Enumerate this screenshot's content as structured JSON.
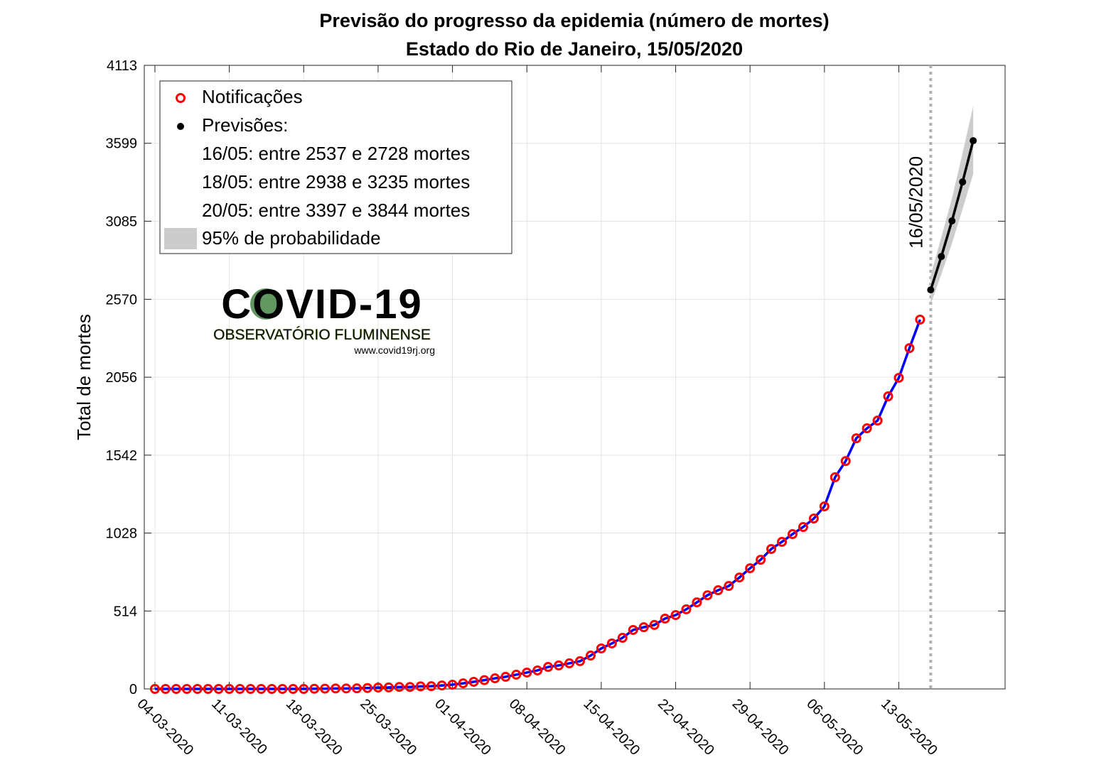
{
  "chart_data": {
    "type": "line",
    "title": "Previsão do progresso da epidemia (número de mortes)",
    "subtitle": "Estado do Rio de Janeiro, 15/05/2020",
    "y_label": "Total de mortes",
    "xlim": [
      "2020-03-03",
      "2020-05-23"
    ],
    "xticks": [
      {
        "value": "2020-03-04",
        "label": "04-03-2020"
      },
      {
        "value": "2020-03-11",
        "label": "11-03-2020"
      },
      {
        "value": "2020-03-18",
        "label": "18-03-2020"
      },
      {
        "value": "2020-03-25",
        "label": "25-03-2020"
      },
      {
        "value": "2020-04-01",
        "label": "01-04-2020"
      },
      {
        "value": "2020-04-08",
        "label": "08-04-2020"
      },
      {
        "value": "2020-04-15",
        "label": "15-04-2020"
      },
      {
        "value": "2020-04-22",
        "label": "22-04-2020"
      },
      {
        "value": "2020-04-29",
        "label": "29-04-2020"
      },
      {
        "value": "2020-05-06",
        "label": "06-05-2020"
      },
      {
        "value": "2020-05-13",
        "label": "13-05-2020"
      }
    ],
    "ylim": [
      0,
      4113
    ],
    "yticks": [
      0,
      514,
      1028,
      1542,
      2056,
      2570,
      3085,
      3599,
      4113
    ],
    "grid": true,
    "legend_position": "top-left",
    "series": [
      {
        "name": "Notificações",
        "color": "#ff0000",
        "line_color": "#0000ff",
        "x": [
          "2020-03-04",
          "2020-03-05",
          "2020-03-06",
          "2020-03-07",
          "2020-03-08",
          "2020-03-09",
          "2020-03-10",
          "2020-03-11",
          "2020-03-12",
          "2020-03-13",
          "2020-03-14",
          "2020-03-15",
          "2020-03-16",
          "2020-03-17",
          "2020-03-18",
          "2020-03-19",
          "2020-03-20",
          "2020-03-21",
          "2020-03-22",
          "2020-03-23",
          "2020-03-24",
          "2020-03-25",
          "2020-03-26",
          "2020-03-27",
          "2020-03-28",
          "2020-03-29",
          "2020-03-30",
          "2020-03-31",
          "2020-04-01",
          "2020-04-02",
          "2020-04-03",
          "2020-04-04",
          "2020-04-05",
          "2020-04-06",
          "2020-04-07",
          "2020-04-08",
          "2020-04-09",
          "2020-04-10",
          "2020-04-11",
          "2020-04-12",
          "2020-04-13",
          "2020-04-14",
          "2020-04-15",
          "2020-04-16",
          "2020-04-17",
          "2020-04-18",
          "2020-04-19",
          "2020-04-20",
          "2020-04-21",
          "2020-04-22",
          "2020-04-23",
          "2020-04-24",
          "2020-04-25",
          "2020-04-26",
          "2020-04-27",
          "2020-04-28",
          "2020-04-29",
          "2020-04-30",
          "2020-05-01",
          "2020-05-02",
          "2020-05-03",
          "2020-05-04",
          "2020-05-05",
          "2020-05-06",
          "2020-05-07",
          "2020-05-08",
          "2020-05-09",
          "2020-05-10",
          "2020-05-11",
          "2020-05-12",
          "2020-05-13",
          "2020-05-14",
          "2020-05-15"
        ],
        "values": [
          0,
          0,
          0,
          0,
          0,
          0,
          0,
          0,
          0,
          0,
          0,
          0,
          0,
          0,
          0,
          1,
          2,
          3,
          3,
          4,
          6,
          9,
          10,
          13,
          13,
          17,
          18,
          23,
          28,
          37,
          47,
          58,
          70,
          80,
          94,
          108,
          122,
          145,
          155,
          169,
          183,
          220,
          267,
          300,
          337,
          389,
          407,
          422,
          464,
          487,
          525,
          571,
          618,
          651,
          679,
          735,
          796,
          852,
          923,
          970,
          1021,
          1068,
          1124,
          1204,
          1396,
          1503,
          1653,
          1719,
          1770,
          1930,
          2052,
          2248,
          2436
        ]
      },
      {
        "name": "Previsões:",
        "color": "#000000",
        "x": [
          "2020-05-16",
          "2020-05-17",
          "2020-05-18",
          "2020-05-19",
          "2020-05-20"
        ],
        "values": [
          2632,
          2852,
          3087,
          3344,
          3616
        ],
        "lower": [
          2537,
          2735,
          2938,
          3165,
          3397
        ],
        "upper": [
          2728,
          2980,
          3235,
          3535,
          3844
        ],
        "band_name": "95% de probabilidade",
        "band_color": "#cccccc"
      }
    ],
    "legend_notes": [
      "16/05: entre 2537 e 2728 mortes",
      "18/05: entre 2938 e 3235 mortes",
      "20/05: entre 3397 e 3844 mortes"
    ],
    "vline": {
      "x": "2020-05-16",
      "label": "16/05/2020",
      "color": "#b0b0b0"
    },
    "logo": {
      "title": "COVID-19",
      "subtitle": "OBSERVATÓRIO FLUMINENSE",
      "url": "www.covid19rj.org"
    }
  }
}
